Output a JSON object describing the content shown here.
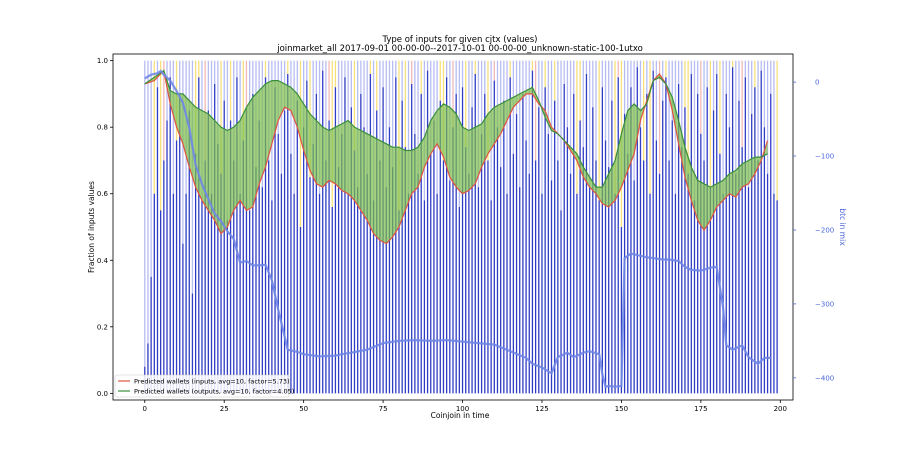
{
  "chart_data": {
    "type": "line",
    "title": "Type of inputs for given cjtx (values)",
    "subtitle": "joinmarket_all 2017-09-01 00-00-00--2017-10-01 00-00-00_unknown-static-100-1utxo",
    "xlabel": "Coinjoin in time",
    "ylabel": "Fraction of inputs values",
    "y2label": "btc in mix",
    "xlim": [
      -10,
      204
    ],
    "ylim": [
      -0.02,
      1.02
    ],
    "y2lim": [
      -430,
      38
    ],
    "xticks": [
      "0",
      "25",
      "50",
      "75",
      "100",
      "125",
      "150",
      "175",
      "200"
    ],
    "yticks": [
      "0.0",
      "0.2",
      "0.4",
      "0.6",
      "0.8",
      "1.0"
    ],
    "y2ticks": [
      "0",
      "−100",
      "−200",
      "−300",
      "−400"
    ],
    "y2tick_values": [
      0,
      -100,
      -200,
      -300,
      -400
    ],
    "grid": false,
    "legend_position": "lower-left",
    "colors": {
      "inputs_line": "#e0533f",
      "outputs_line": "#3a8f3a",
      "fill": "#7cbd4a",
      "btc_line": "#6f86e6",
      "bar_main": "#2f3cc4",
      "bar_light": "#b7bcf2",
      "bar_yellow": "#f7e07a",
      "bar_pink": "#f2b8b8",
      "y2_axis": "#4a66d8"
    },
    "series": [
      {
        "name": "Predicted wallets (inputs, avg=10, factor=5.73)",
        "x": [
          0,
          3,
          6,
          8,
          10,
          12,
          14,
          16,
          18,
          20,
          22,
          24,
          26,
          28,
          30,
          32,
          34,
          36,
          38,
          40,
          42,
          44,
          46,
          48,
          50,
          52,
          54,
          56,
          58,
          60,
          62,
          64,
          66,
          68,
          70,
          72,
          74,
          76,
          78,
          80,
          82,
          84,
          86,
          88,
          90,
          92,
          94,
          96,
          98,
          100,
          102,
          104,
          106,
          108,
          110,
          112,
          114,
          116,
          118,
          120,
          122,
          124,
          126,
          128,
          130,
          132,
          134,
          136,
          138,
          140,
          142,
          144,
          146,
          148,
          150,
          152,
          154,
          156,
          158,
          160,
          162,
          164,
          166,
          168,
          170,
          172,
          174,
          176,
          178,
          180,
          182,
          184,
          186,
          188,
          190,
          192,
          194,
          196
        ],
        "values": [
          0.93,
          0.94,
          0.97,
          0.87,
          0.8,
          0.75,
          0.68,
          0.62,
          0.58,
          0.55,
          0.52,
          0.48,
          0.5,
          0.55,
          0.58,
          0.55,
          0.56,
          0.63,
          0.68,
          0.75,
          0.82,
          0.86,
          0.85,
          0.8,
          0.73,
          0.67,
          0.63,
          0.62,
          0.64,
          0.63,
          0.61,
          0.6,
          0.58,
          0.55,
          0.52,
          0.48,
          0.46,
          0.45,
          0.47,
          0.5,
          0.55,
          0.6,
          0.62,
          0.68,
          0.72,
          0.75,
          0.71,
          0.65,
          0.62,
          0.6,
          0.61,
          0.63,
          0.68,
          0.72,
          0.75,
          0.78,
          0.82,
          0.86,
          0.88,
          0.9,
          0.9,
          0.87,
          0.85,
          0.8,
          0.78,
          0.76,
          0.73,
          0.7,
          0.65,
          0.62,
          0.6,
          0.57,
          0.56,
          0.58,
          0.62,
          0.67,
          0.72,
          0.82,
          0.88,
          0.94,
          0.96,
          0.93,
          0.85,
          0.75,
          0.65,
          0.58,
          0.52,
          0.49,
          0.52,
          0.56,
          0.58,
          0.6,
          0.59,
          0.62,
          0.63,
          0.66,
          0.7,
          0.76
        ]
      },
      {
        "name": "Predicted wallets (outputs, avg=10, factor=4.05)",
        "x": [
          0,
          3,
          6,
          8,
          10,
          12,
          14,
          16,
          18,
          20,
          22,
          24,
          26,
          28,
          30,
          32,
          34,
          36,
          38,
          40,
          42,
          44,
          46,
          48,
          50,
          52,
          54,
          56,
          58,
          60,
          62,
          64,
          66,
          68,
          70,
          72,
          74,
          76,
          78,
          80,
          82,
          84,
          86,
          88,
          90,
          92,
          94,
          96,
          98,
          100,
          102,
          104,
          106,
          108,
          110,
          112,
          114,
          116,
          118,
          120,
          122,
          124,
          126,
          128,
          130,
          132,
          134,
          136,
          138,
          140,
          142,
          144,
          146,
          148,
          150,
          152,
          154,
          156,
          158,
          160,
          162,
          164,
          166,
          168,
          170,
          172,
          174,
          176,
          178,
          180,
          182,
          184,
          186,
          188,
          190,
          192,
          194,
          196
        ],
        "values": [
          0.93,
          0.95,
          0.97,
          0.91,
          0.9,
          0.9,
          0.88,
          0.86,
          0.85,
          0.84,
          0.82,
          0.8,
          0.79,
          0.8,
          0.82,
          0.86,
          0.89,
          0.91,
          0.93,
          0.94,
          0.94,
          0.93,
          0.92,
          0.9,
          0.87,
          0.84,
          0.82,
          0.8,
          0.79,
          0.8,
          0.81,
          0.82,
          0.8,
          0.79,
          0.78,
          0.77,
          0.76,
          0.75,
          0.74,
          0.74,
          0.73,
          0.73,
          0.74,
          0.77,
          0.82,
          0.85,
          0.87,
          0.86,
          0.84,
          0.8,
          0.79,
          0.8,
          0.81,
          0.84,
          0.86,
          0.87,
          0.88,
          0.89,
          0.9,
          0.91,
          0.92,
          0.88,
          0.83,
          0.79,
          0.78,
          0.76,
          0.74,
          0.72,
          0.68,
          0.65,
          0.62,
          0.62,
          0.66,
          0.7,
          0.78,
          0.85,
          0.87,
          0.85,
          0.87,
          0.94,
          0.95,
          0.93,
          0.89,
          0.82,
          0.74,
          0.68,
          0.64,
          0.63,
          0.62,
          0.63,
          0.64,
          0.66,
          0.67,
          0.69,
          0.7,
          0.71,
          0.71,
          0.72
        ]
      },
      {
        "axis": "right",
        "x": [
          0,
          2,
          4,
          5,
          6,
          8,
          10,
          12,
          14,
          16,
          18,
          20,
          22,
          24,
          26,
          28,
          30,
          32,
          34,
          36,
          38,
          40,
          42,
          45,
          48,
          50,
          55,
          60,
          62,
          65,
          70,
          75,
          80,
          85,
          90,
          95,
          100,
          105,
          110,
          115,
          120,
          122,
          125,
          128,
          130,
          133,
          135,
          138,
          140,
          143,
          144,
          145,
          146,
          148,
          150,
          151,
          153,
          155,
          158,
          160,
          163,
          165,
          168,
          170,
          172,
          175,
          178,
          180,
          182,
          183,
          185,
          188,
          190,
          193,
          195,
          197
        ],
        "values": [
          5,
          10,
          12,
          15,
          10,
          2,
          -12,
          -28,
          -62,
          -112,
          -138,
          -158,
          -178,
          -188,
          -202,
          -212,
          -244,
          -242,
          -248,
          -248,
          -247,
          -268,
          -308,
          -362,
          -365,
          -368,
          -371,
          -370,
          -368,
          -366,
          -362,
          -353,
          -350,
          -349,
          -350,
          -349,
          -351,
          -353,
          -355,
          -364,
          -373,
          -381,
          -386,
          -394,
          -372,
          -366,
          -372,
          -366,
          -364,
          -368,
          -395,
          -412,
          -411,
          -412,
          -411,
          -238,
          -232,
          -234,
          -237,
          -238,
          -240,
          -240,
          -242,
          -250,
          -254,
          -255,
          -251,
          -250,
          -305,
          -356,
          -362,
          -356,
          -372,
          -381,
          -373,
          -373
        ]
      }
    ],
    "bars_note": "vertical bars at every coinjoin index 0-199 spanning 0-1; dominant color and top fraction per index",
    "bars": {
      "x_start": 0,
      "top": [
        0.08,
        0.15,
        0.35,
        0.6,
        0.92,
        0.55,
        0.7,
        0.82,
        0.95,
        0.6,
        0.76,
        0.9,
        0.45,
        0.6,
        0.85,
        0.3,
        0.72,
        0.95,
        0.58,
        0.7,
        0.85,
        0.6,
        0.93,
        0.75,
        0.66,
        0.88,
        0.52,
        0.82,
        0.7,
        0.95,
        0.6,
        0.76,
        0.86,
        0.55,
        0.9,
        0.68,
        0.82,
        0.62,
        0.95,
        0.7,
        0.58,
        0.92,
        0.78,
        0.66,
        0.85,
        0.96,
        0.72,
        0.6,
        0.88,
        0.5,
        0.8,
        0.94,
        0.65,
        0.75,
        0.9,
        0.6,
        0.97,
        0.7,
        0.82,
        0.56,
        0.92,
        0.68,
        0.78,
        0.95,
        0.6,
        0.86,
        0.73,
        0.62,
        0.9,
        0.8,
        0.66,
        0.96,
        0.58,
        0.85,
        0.7,
        0.92,
        0.62,
        0.8,
        0.68,
        0.95,
        0.55,
        0.88,
        0.74,
        0.6,
        0.93,
        0.78,
        0.66,
        0.9,
        0.58,
        0.97,
        0.72,
        0.82,
        0.6,
        0.88,
        0.7,
        0.95,
        0.64,
        0.8,
        0.9,
        0.56,
        0.92,
        0.74,
        0.66,
        0.86,
        0.96,
        0.62,
        0.78,
        0.9,
        0.7,
        0.58,
        0.94,
        0.8,
        0.68,
        0.88,
        0.6,
        0.95,
        0.72,
        0.84,
        0.62,
        0.9,
        0.76,
        0.66,
        0.97,
        0.7,
        0.86,
        0.6,
        0.92,
        0.78,
        0.64,
        0.88,
        0.7,
        0.55,
        0.93,
        0.8,
        0.66,
        0.9,
        0.6,
        0.82,
        0.74,
        0.96,
        0.62,
        0.86,
        0.7,
        0.58,
        0.92,
        0.76,
        0.68,
        0.88,
        0.6,
        0.95,
        0.5,
        0.84,
        0.72,
        0.92,
        0.64,
        0.98,
        0.8,
        0.7,
        0.9,
        0.6,
        0.97,
        0.76,
        0.66,
        0.88,
        0.95,
        0.7,
        0.82,
        0.6,
        0.93,
        0.74,
        0.86,
        0.66,
        0.96,
        0.58,
        0.9,
        0.78,
        0.7,
        0.92,
        0.62,
        0.85,
        0.96,
        0.72,
        0.6,
        0.9,
        0.8,
        0.98,
        0.66,
        0.88,
        0.74,
        0.95,
        0.62,
        0.84,
        0.92,
        0.7,
        0.97,
        0.8,
        0.66,
        0.9,
        0.6,
        0.58
      ]
    }
  }
}
